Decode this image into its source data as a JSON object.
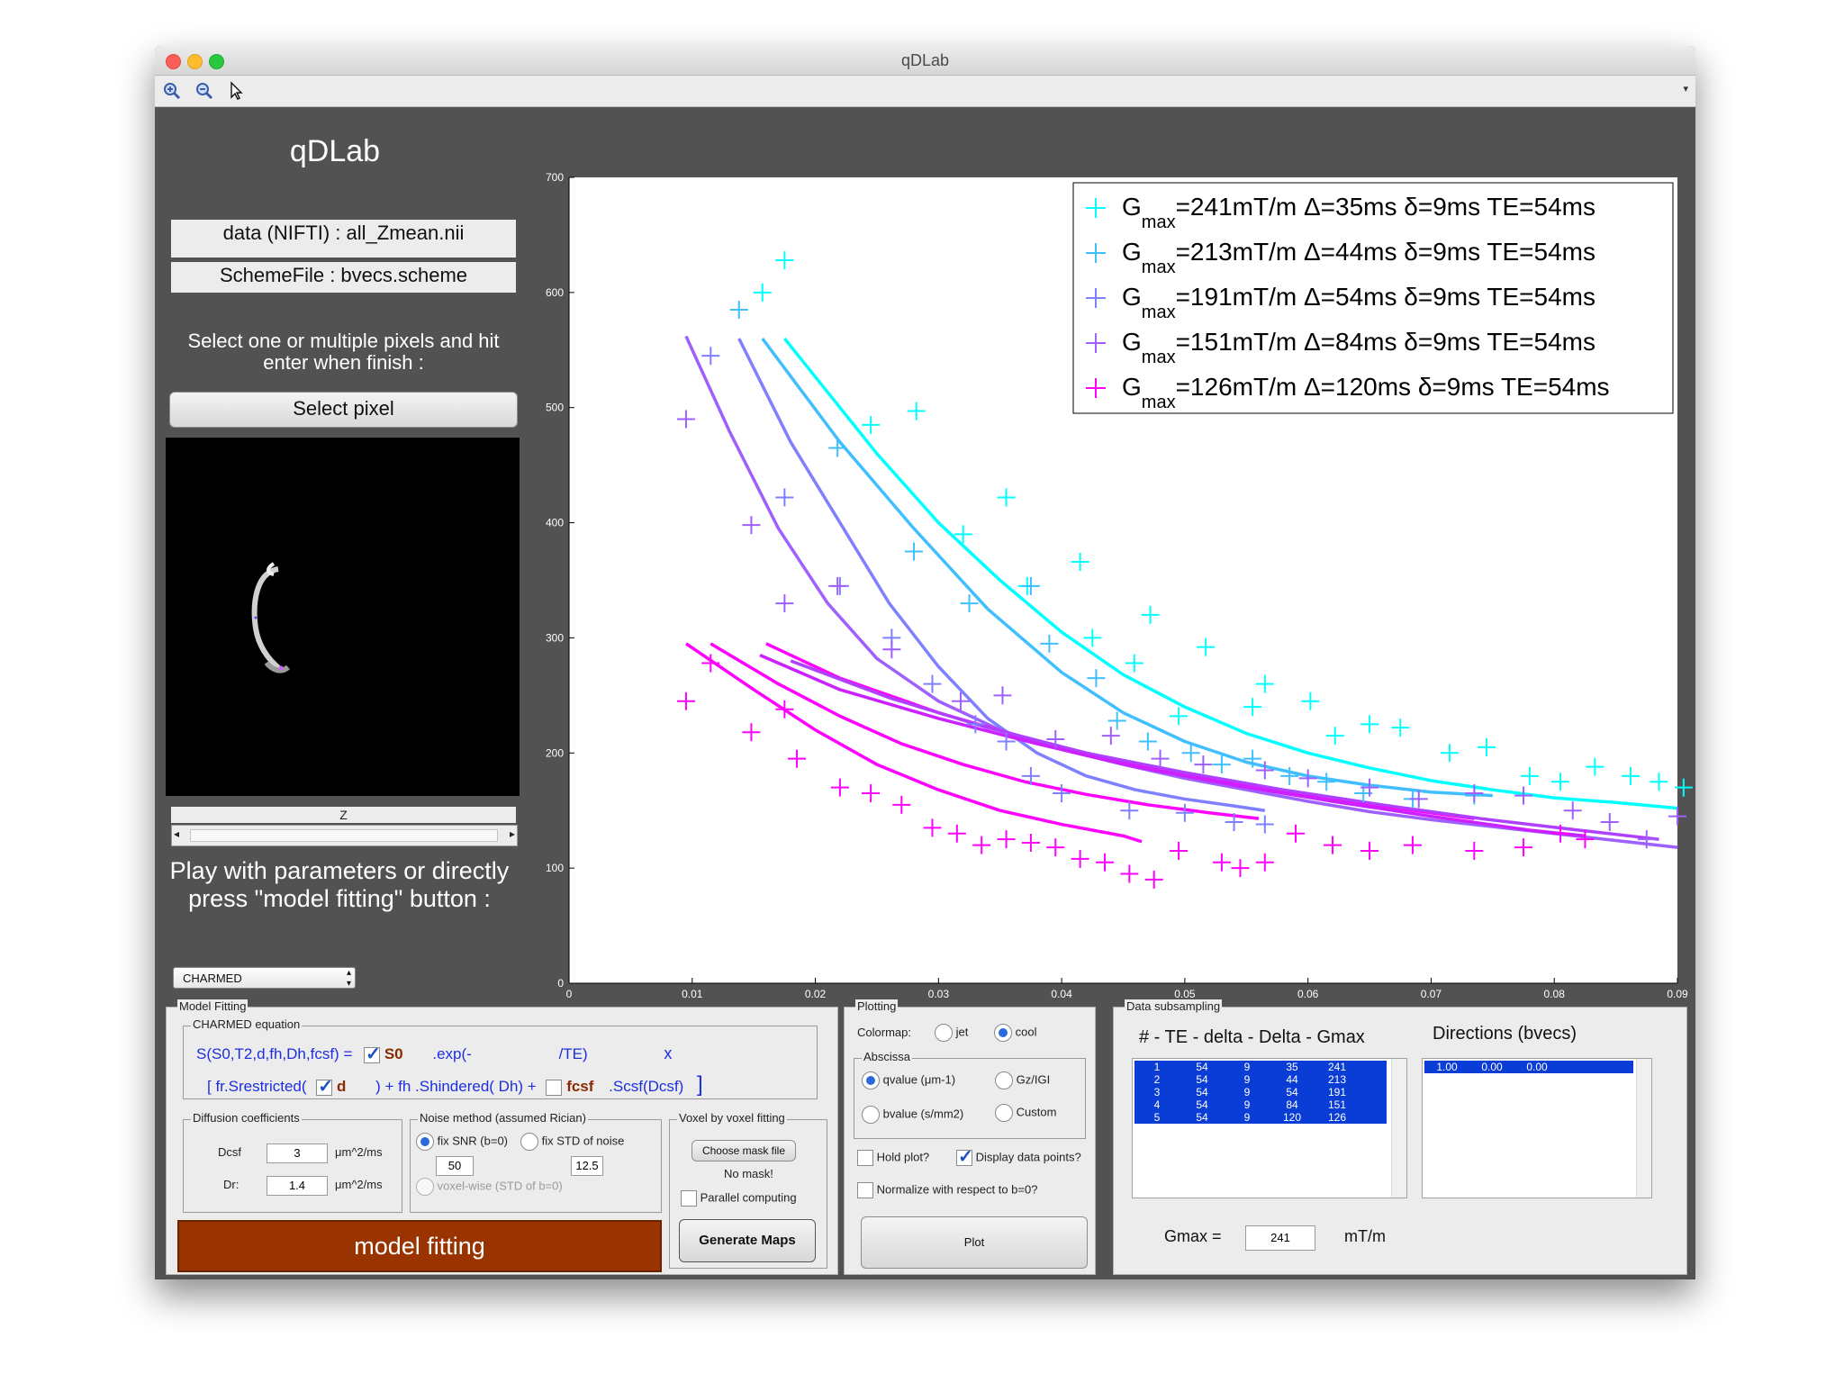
{
  "window": {
    "title": "qDLab"
  },
  "toolbar": {
    "zoom_in_icon": "zoom-in-icon",
    "zoom_out_icon": "zoom-out-icon",
    "pointer_icon": "pointer-icon",
    "more_icon": "chevron-icon"
  },
  "left": {
    "app_title": "qDLab",
    "data_file": "data (NIFTI) : all_Zmean.nii",
    "scheme_file": "SchemeFile : bvecs.scheme",
    "instruction": "Select one or multiple pixels and hit enter when finish :",
    "select_pixel": "Select pixel",
    "slider_label": "Z",
    "play_text": "Play with parameters or directly press \"model fitting\" button :",
    "model_select": "CHARMED"
  },
  "chart_data": {
    "type": "scatter",
    "title": "",
    "xlabel": "",
    "ylabel": "",
    "xlim": [
      0,
      0.09
    ],
    "ylim": [
      0,
      700
    ],
    "xticks": [
      0,
      0.01,
      0.02,
      0.03,
      0.04,
      0.05,
      0.06,
      0.07,
      0.08,
      0.09
    ],
    "yticks": [
      0,
      100,
      200,
      300,
      400,
      500,
      600,
      700
    ],
    "grid": false,
    "legend_position": "top-right",
    "series": [
      {
        "name": "Gmax=241mT/m Δ=35ms δ=9ms TE=54ms",
        "legend": {
          "g": "G",
          "sub": "max",
          "rest": "=241mT/m  Δ=35ms  δ=9ms  TE=54ms"
        },
        "color": "#00ffff",
        "points": [
          [
            0.0175,
            628
          ],
          [
            0.0157,
            600
          ],
          [
            0.0245,
            485
          ],
          [
            0.0282,
            497
          ],
          [
            0.032,
            390
          ],
          [
            0.0355,
            422
          ],
          [
            0.0415,
            366
          ],
          [
            0.0372,
            345
          ],
          [
            0.0472,
            320
          ],
          [
            0.0425,
            300
          ],
          [
            0.0517,
            292
          ],
          [
            0.0459,
            278
          ],
          [
            0.0495,
            232
          ],
          [
            0.0555,
            240
          ],
          [
            0.0565,
            260
          ],
          [
            0.0602,
            245
          ],
          [
            0.0622,
            215
          ],
          [
            0.065,
            225
          ],
          [
            0.0675,
            222
          ],
          [
            0.0715,
            200
          ],
          [
            0.0745,
            205
          ],
          [
            0.078,
            180
          ],
          [
            0.0805,
            175
          ],
          [
            0.0833,
            188
          ],
          [
            0.0862,
            180
          ],
          [
            0.0885,
            175
          ],
          [
            0.0905,
            170
          ]
        ],
        "fit": [
          [
            0.0175,
            560
          ],
          [
            0.025,
            460
          ],
          [
            0.03,
            400
          ],
          [
            0.035,
            350
          ],
          [
            0.04,
            305
          ],
          [
            0.045,
            268
          ],
          [
            0.05,
            240
          ],
          [
            0.055,
            217
          ],
          [
            0.06,
            200
          ],
          [
            0.065,
            187
          ],
          [
            0.07,
            176
          ],
          [
            0.075,
            168
          ],
          [
            0.08,
            161
          ],
          [
            0.085,
            157
          ],
          [
            0.09,
            152
          ]
        ]
      },
      {
        "name": "Gmax=213mT/m Δ=44ms δ=9ms TE=54ms",
        "legend": {
          "g": "G",
          "sub": "max",
          "rest": "=213mT/m  Δ=44ms  δ=9ms  TE=54ms"
        },
        "color": "#40bfff",
        "points": [
          [
            0.0138,
            585
          ],
          [
            0.0218,
            465
          ],
          [
            0.028,
            375
          ],
          [
            0.0325,
            330
          ],
          [
            0.0375,
            345
          ],
          [
            0.039,
            295
          ],
          [
            0.0428,
            265
          ],
          [
            0.0445,
            228
          ],
          [
            0.047,
            210
          ],
          [
            0.0505,
            200
          ],
          [
            0.053,
            190
          ],
          [
            0.0555,
            195
          ],
          [
            0.0585,
            180
          ],
          [
            0.0615,
            175
          ],
          [
            0.0645,
            165
          ],
          [
            0.0685,
            160
          ],
          [
            0.0735,
            163
          ]
        ],
        "fit": [
          [
            0.0157,
            560
          ],
          [
            0.022,
            470
          ],
          [
            0.028,
            395
          ],
          [
            0.034,
            325
          ],
          [
            0.04,
            270
          ],
          [
            0.045,
            235
          ],
          [
            0.05,
            210
          ],
          [
            0.055,
            192
          ],
          [
            0.06,
            180
          ],
          [
            0.065,
            172
          ],
          [
            0.07,
            166
          ],
          [
            0.075,
            163
          ]
        ]
      },
      {
        "name": "Gmax=191mT/m Δ=54ms δ=9ms TE=54ms",
        "legend": {
          "g": "G",
          "sub": "max",
          "rest": "=191mT/m  Δ=54ms  δ=9ms  TE=54ms"
        },
        "color": "#7f80ff",
        "points": [
          [
            0.0115,
            545
          ],
          [
            0.0175,
            422
          ],
          [
            0.022,
            345
          ],
          [
            0.0262,
            300
          ],
          [
            0.0295,
            260
          ],
          [
            0.033,
            225
          ],
          [
            0.0355,
            210
          ],
          [
            0.0375,
            180
          ],
          [
            0.04,
            165
          ],
          [
            0.0455,
            150
          ],
          [
            0.05,
            148
          ],
          [
            0.054,
            140
          ],
          [
            0.0565,
            138
          ]
        ],
        "fit": [
          [
            0.0138,
            560
          ],
          [
            0.018,
            470
          ],
          [
            0.022,
            400
          ],
          [
            0.026,
            330
          ],
          [
            0.03,
            275
          ],
          [
            0.034,
            230
          ],
          [
            0.038,
            200
          ],
          [
            0.042,
            180
          ],
          [
            0.046,
            168
          ],
          [
            0.05,
            160
          ],
          [
            0.054,
            154
          ],
          [
            0.0565,
            150
          ]
        ]
      },
      {
        "name": "Gmax=151mT/m Δ=84ms δ=9ms TE=54ms",
        "legend": {
          "g": "G",
          "sub": "max",
          "rest": "=151mT/m  Δ=84ms  δ=9ms  TE=54ms"
        },
        "color": "#9f60ff",
        "points": [
          [
            0.0095,
            490
          ],
          [
            0.0148,
            398
          ],
          [
            0.0175,
            330
          ],
          [
            0.0218,
            345
          ],
          [
            0.0262,
            290
          ],
          [
            0.0318,
            245
          ],
          [
            0.0352,
            250
          ],
          [
            0.0395,
            212
          ],
          [
            0.044,
            215
          ],
          [
            0.048,
            195
          ],
          [
            0.0515,
            190
          ],
          [
            0.0565,
            185
          ],
          [
            0.06,
            178
          ],
          [
            0.065,
            170
          ],
          [
            0.069,
            160
          ],
          [
            0.0735,
            165
          ],
          [
            0.0775,
            163
          ],
          [
            0.0815,
            150
          ],
          [
            0.0845,
            140
          ],
          [
            0.0875,
            125
          ],
          [
            0.09,
            145
          ]
        ],
        "fit": [
          [
            0.0095,
            562
          ],
          [
            0.013,
            480
          ],
          [
            0.017,
            395
          ],
          [
            0.021,
            330
          ],
          [
            0.025,
            282
          ],
          [
            0.03,
            245
          ],
          [
            0.035,
            220
          ],
          [
            0.04,
            203
          ],
          [
            0.045,
            190
          ],
          [
            0.05,
            178
          ],
          [
            0.055,
            168
          ],
          [
            0.06,
            158
          ],
          [
            0.065,
            149
          ],
          [
            0.07,
            142
          ],
          [
            0.075,
            136
          ],
          [
            0.08,
            130
          ],
          [
            0.085,
            124
          ],
          [
            0.09,
            118
          ]
        ]
      },
      {
        "name": "Gmax=126mT/m Δ=120ms δ=9ms TE=54ms",
        "legend": {
          "g": "G",
          "sub": "max",
          "rest": "=126mT/m  Δ=120ms  δ=9ms  TE=54ms"
        },
        "color": "#ff00ff",
        "points": [
          [
            0.0095,
            245
          ],
          [
            0.0115,
            278
          ],
          [
            0.0148,
            218
          ],
          [
            0.0175,
            238
          ],
          [
            0.0185,
            195
          ],
          [
            0.022,
            170
          ],
          [
            0.0245,
            165
          ],
          [
            0.027,
            155
          ],
          [
            0.0295,
            135
          ],
          [
            0.0315,
            130
          ],
          [
            0.0335,
            120
          ],
          [
            0.0355,
            125
          ],
          [
            0.0375,
            122
          ],
          [
            0.0395,
            118
          ],
          [
            0.0415,
            108
          ],
          [
            0.0435,
            105
          ],
          [
            0.0455,
            95
          ],
          [
            0.0475,
            90
          ],
          [
            0.0495,
            115
          ],
          [
            0.053,
            105
          ],
          [
            0.0545,
            100
          ],
          [
            0.0565,
            105
          ],
          [
            0.059,
            130
          ],
          [
            0.062,
            120
          ],
          [
            0.065,
            115
          ],
          [
            0.0685,
            120
          ],
          [
            0.0735,
            115
          ],
          [
            0.0775,
            118
          ],
          [
            0.0805,
            130
          ],
          [
            0.0825,
            125
          ]
        ],
        "fit": [
          [
            0.0095,
            295
          ],
          [
            0.015,
            255
          ],
          [
            0.02,
            220
          ],
          [
            0.025,
            190
          ],
          [
            0.03,
            168
          ],
          [
            0.035,
            150
          ],
          [
            0.04,
            138
          ],
          [
            0.045,
            128
          ],
          [
            0.0465,
            123
          ]
        ],
        "fit2": [
          [
            0.0115,
            295
          ],
          [
            0.017,
            260
          ],
          [
            0.022,
            232
          ],
          [
            0.027,
            208
          ],
          [
            0.032,
            190
          ],
          [
            0.037,
            175
          ],
          [
            0.042,
            164
          ],
          [
            0.047,
            155
          ],
          [
            0.052,
            148
          ],
          [
            0.056,
            143
          ]
        ],
        "fit3": [
          [
            0.016,
            295
          ],
          [
            0.022,
            265
          ],
          [
            0.03,
            235
          ],
          [
            0.038,
            210
          ],
          [
            0.046,
            190
          ],
          [
            0.054,
            174
          ],
          [
            0.062,
            160
          ],
          [
            0.07,
            148
          ],
          [
            0.0735,
            143
          ]
        ]
      }
    ],
    "extra_lines": [
      {
        "color": "#b040ff",
        "points": [
          [
            0.018,
            280
          ],
          [
            0.026,
            248
          ],
          [
            0.034,
            222
          ],
          [
            0.042,
            200
          ],
          [
            0.05,
            183
          ],
          [
            0.058,
            168
          ],
          [
            0.066,
            155
          ],
          [
            0.074,
            143
          ],
          [
            0.082,
            133
          ],
          [
            0.0885,
            125
          ]
        ]
      },
      {
        "color": "#cc20ff",
        "points": [
          [
            0.0155,
            285
          ],
          [
            0.022,
            255
          ],
          [
            0.03,
            230
          ],
          [
            0.038,
            208
          ],
          [
            0.046,
            188
          ],
          [
            0.054,
            172
          ],
          [
            0.062,
            158
          ],
          [
            0.07,
            145
          ],
          [
            0.078,
            133
          ],
          [
            0.0825,
            128
          ]
        ]
      }
    ]
  },
  "model_fitting": {
    "title": "Model Fitting",
    "eq_group": "CHARMED equation",
    "eq_line1_a": "S(S0,T2,d,fh,Dh,fcsf) =",
    "eq_s0": "S0",
    "eq_exp": ".exp(-",
    "eq_te": "/TE)",
    "eq_x": "x",
    "eq_line2_a": "[  fr.Srestricted(",
    "eq_d": "d",
    "eq_line2_b": ") + fh  .Shindered( Dh) +",
    "eq_fcsf": "fcsf",
    "eq_line2_c": ".Scsf(Dcsf)",
    "eq_bracket": "]",
    "diff_title": "Diffusion coefficients",
    "dcsf_label": "Dcsf",
    "dcsf_value": "3",
    "dcsf_unit": "μm^2/ms",
    "dr_label": "Dr:",
    "dr_value": "1.4",
    "dr_unit": "μm^2/ms",
    "noise_title": "Noise method (assumed Rician)",
    "fix_snr": "fix SNR (b=0)",
    "fix_std": "fix STD of noise",
    "snr_value": "50",
    "std_value": "12.5",
    "voxelwise": "voxel-wise (STD of b=0)",
    "voxel_title": "Voxel by voxel fitting",
    "choose_mask": "Choose mask file",
    "no_mask": "No mask!",
    "parallel": "Parallel computing",
    "generate_maps": "Generate Maps",
    "model_fitting_btn": "model fitting",
    "model_fitting_color": "#993300"
  },
  "plotting": {
    "title": "Plotting",
    "colormap_label": "Colormap:",
    "jet": "jet",
    "cool": "cool",
    "abscissa_title": "Abscissa",
    "qvalue": "qvalue (μm-1)",
    "gzgi": "Gz/IGI",
    "bvalue": "bvalue (s/mm2)",
    "custom": "Custom",
    "hold_plot": "Hold plot?",
    "display_points": "Display data points?",
    "normalize": "Normalize with respect to b=0?",
    "plot_btn": "Plot"
  },
  "subsampling": {
    "title": "Data subsampling",
    "header": "# - TE - delta - Delta - Gmax",
    "directions_header": "Directions (bvecs)",
    "rows": [
      [
        "1",
        "54",
        "9",
        "35",
        "241"
      ],
      [
        "2",
        "54",
        "9",
        "44",
        "213"
      ],
      [
        "3",
        "54",
        "9",
        "54",
        "191"
      ],
      [
        "4",
        "54",
        "9",
        "84",
        "151"
      ],
      [
        "5",
        "54",
        "9",
        "120",
        "126"
      ]
    ],
    "directions": [
      [
        "1.00",
        "0.00",
        "0.00"
      ]
    ],
    "gmax_label": "Gmax =",
    "gmax_value": "241",
    "gmax_unit": "mT/m",
    "selection_color": "#0a3cd6"
  }
}
